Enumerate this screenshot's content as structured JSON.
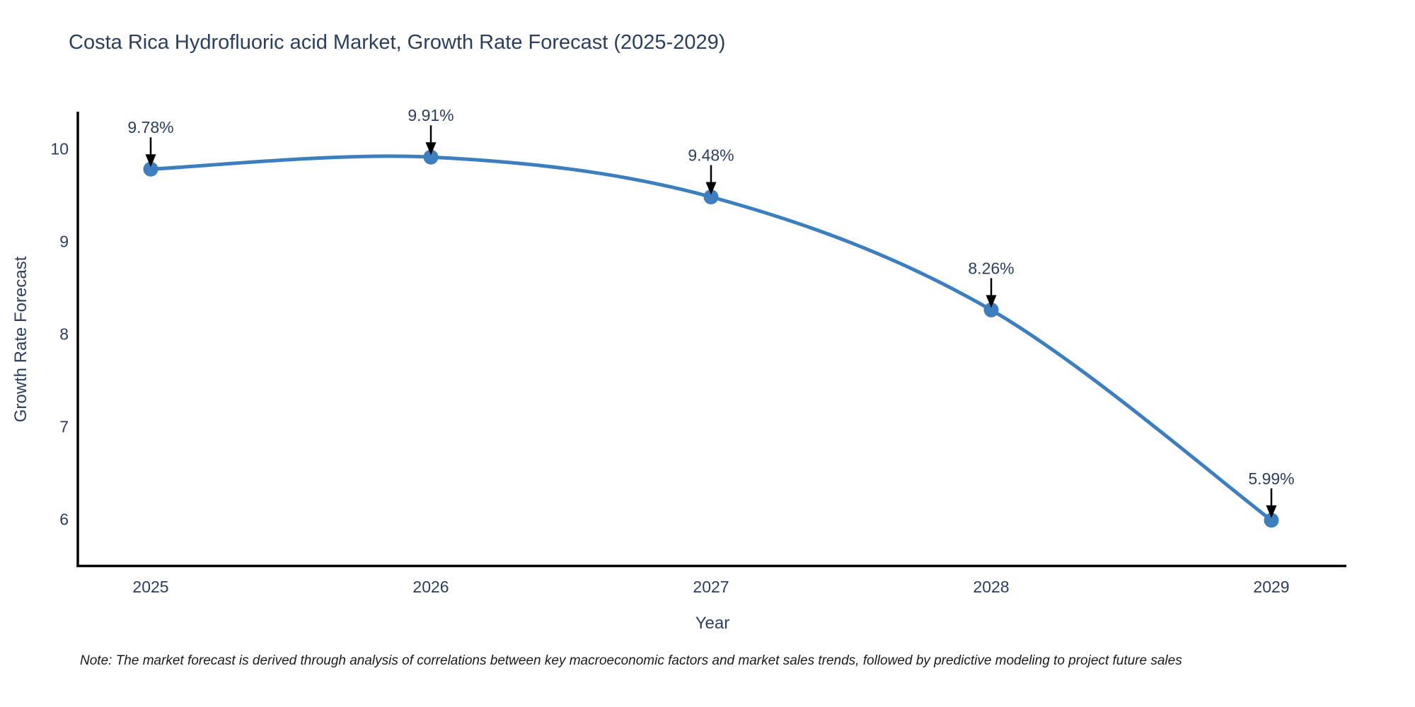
{
  "chart_data": {
    "type": "line",
    "title": "Costa Rica Hydrofluoric acid Market, Growth Rate Forecast (2025-2029)",
    "xlabel": "Year",
    "ylabel": "Growth Rate Forecast",
    "x": [
      2025,
      2026,
      2027,
      2028,
      2029
    ],
    "series": [
      {
        "name": "Growth Rate Forecast",
        "values": [
          9.78,
          9.91,
          9.48,
          8.26,
          5.99
        ]
      }
    ],
    "point_labels": [
      "9.78%",
      "9.91%",
      "9.48%",
      "8.26%",
      "5.99%"
    ],
    "y_ticks": [
      6,
      7,
      8,
      9,
      10
    ],
    "ylim": [
      5.5,
      10.4
    ],
    "grid": false,
    "legend_position": "none",
    "curve": "spline",
    "annotation_style": "arrow-down-to-point",
    "colors": {
      "line": "#3d7ebf",
      "marker": "#3d7ebf",
      "axis": "#000000",
      "text": "#2a3f5f",
      "annotation_text": "#2a3f5f",
      "annotation_arrow": "#000000",
      "note_text": "#1a1a1a"
    }
  },
  "note": "Note: The market forecast is derived through analysis of correlations between key macroeconomic factors and market sales trends, followed by predictive modeling to project future sales"
}
